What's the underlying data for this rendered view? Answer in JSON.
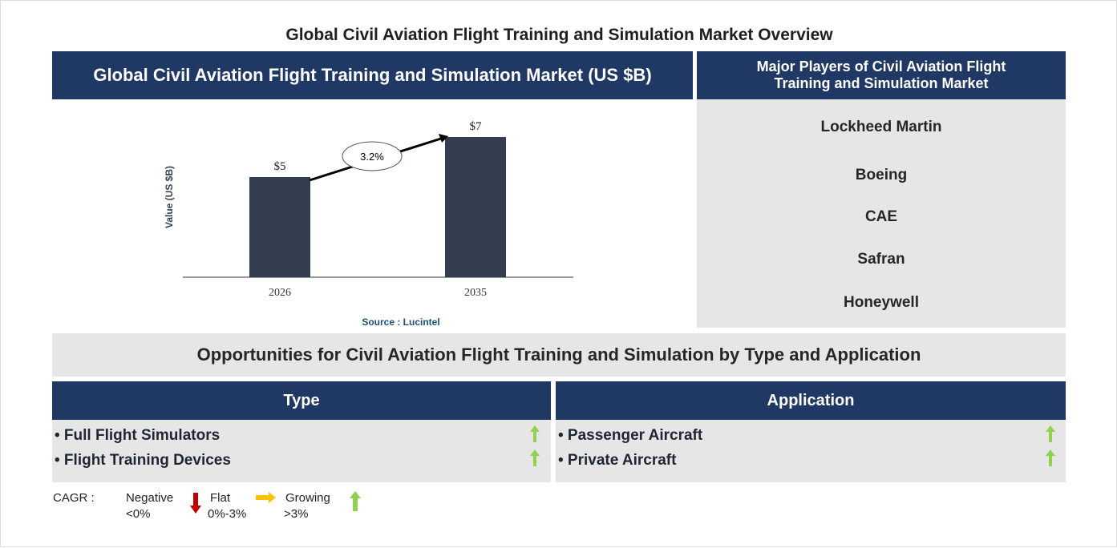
{
  "title": "Global Civil Aviation Flight Training and Simulation Market Overview",
  "chart_header": "Global Civil Aviation Flight Training and Simulation Market (US $B)",
  "players_header": "Major Players of Civil Aviation Flight Training and Simulation Market",
  "players": [
    "Lockheed Martin",
    "Boeing",
    "CAE",
    "Safran",
    "Honeywell"
  ],
  "opportunities_title": "Opportunities for Civil Aviation Flight Training and Simulation by Type and Application",
  "type": {
    "header": "Type",
    "items": [
      "• Full Flight Simulators",
      "• Flight Training Devices"
    ]
  },
  "application": {
    "header": "Application",
    "items": [
      "• Passenger Aircraft",
      "• Private Aircraft"
    ]
  },
  "legend": {
    "cagr": "CAGR :",
    "negative": "Negative",
    "negative_range": "<0%",
    "flat": "Flat",
    "flat_range": "0%-3%",
    "growing": "Growing",
    "growing_range": ">3%"
  },
  "colors": {
    "navy": "#203864",
    "bar": "#333f50",
    "green": "#92d050",
    "red": "#c00000",
    "yellow": "#ffc000"
  },
  "chart_data": {
    "type": "bar",
    "categories": [
      "2026",
      "2035"
    ],
    "values": [
      5,
      7
    ],
    "labels": [
      "$5",
      "$7"
    ],
    "ylabel": "Value (US $B)",
    "ylim": [
      0,
      8
    ],
    "cagr_annotation": "3.2%",
    "source": "Source : Lucintel"
  }
}
